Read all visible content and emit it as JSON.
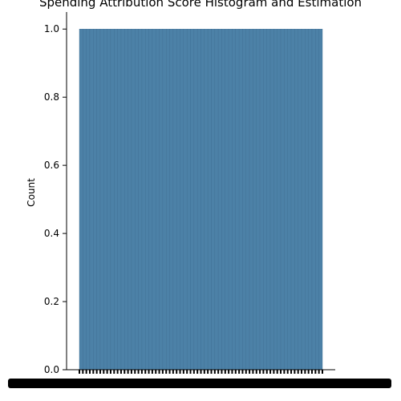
{
  "chart_data": {
    "type": "bar",
    "title": "Spending Attribution Score Histogram and Estimation",
    "xlabel": "",
    "ylabel": "Count",
    "ylim": [
      0,
      1.05
    ],
    "yticks": [
      0.0,
      0.2,
      0.4,
      0.6,
      0.8,
      1.0
    ],
    "ytick_labels": [
      "0.0",
      "0.2",
      "0.4",
      "0.6",
      "0.8",
      "1.0"
    ],
    "bin_count": 70,
    "bin_value": 1.0,
    "bar_color": "#4c81a7",
    "bar_edge_color": "#3f6f94",
    "grid": false
  }
}
